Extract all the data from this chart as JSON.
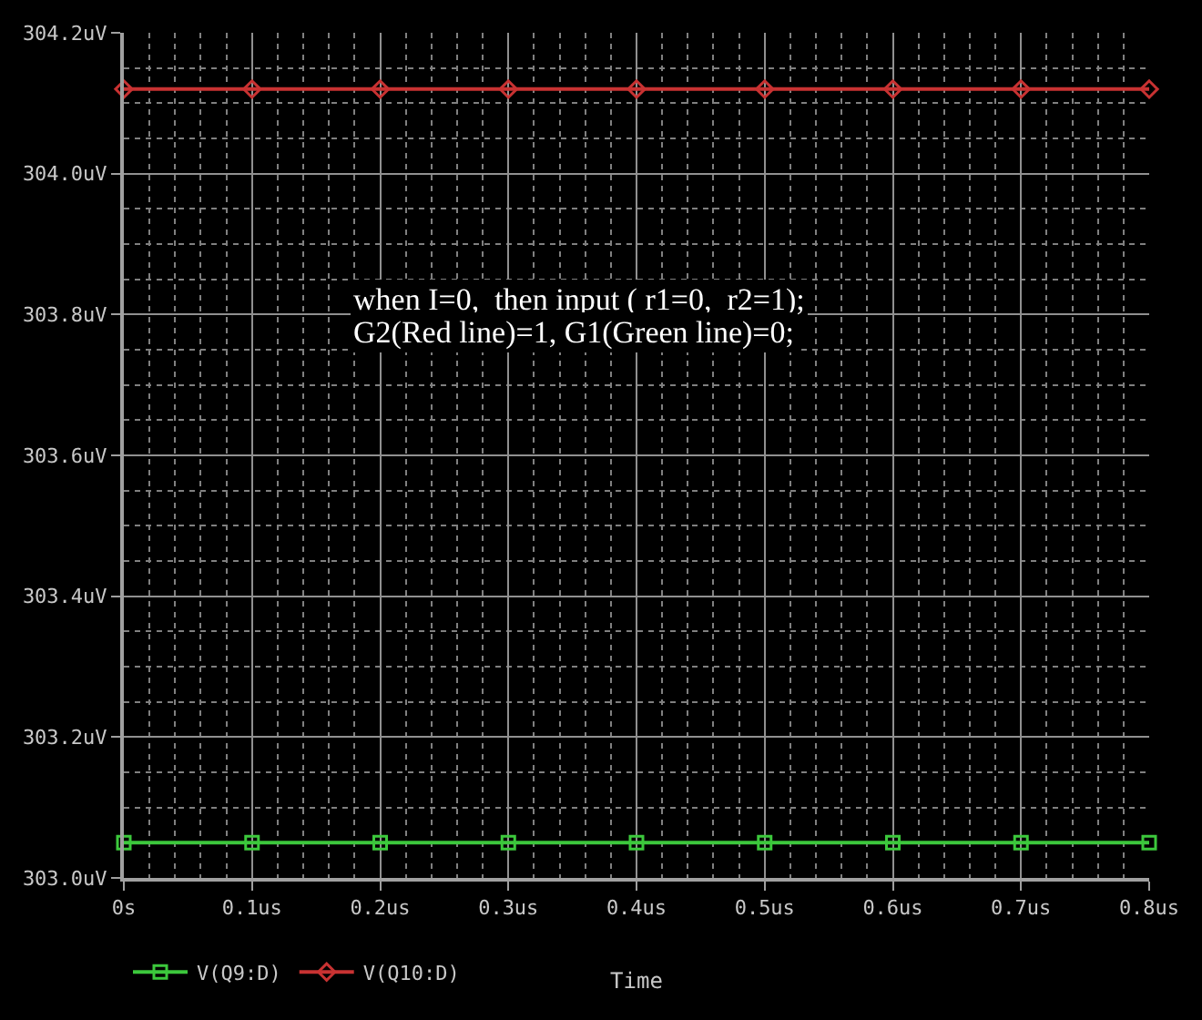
{
  "chart_data": {
    "type": "line",
    "xlabel": "Time",
    "x": [
      0,
      0.1,
      0.2,
      0.3,
      0.4,
      0.5,
      0.6,
      0.7,
      0.8
    ],
    "series": [
      {
        "name": "V(Q9:D)",
        "color": "#3cc83c",
        "marker": "square",
        "values": [
          303.05,
          303.05,
          303.05,
          303.05,
          303.05,
          303.05,
          303.05,
          303.05,
          303.05
        ]
      },
      {
        "name": "V(Q10:D)",
        "color": "#c83232",
        "marker": "diamond",
        "values": [
          304.12,
          304.12,
          304.12,
          304.12,
          304.12,
          304.12,
          304.12,
          304.12,
          304.12
        ]
      }
    ],
    "xlim": [
      0,
      0.8
    ],
    "xticks": [
      {
        "value": 0,
        "label": "0s"
      },
      {
        "value": 0.1,
        "label": "0.1us"
      },
      {
        "value": 0.2,
        "label": "0.2us"
      },
      {
        "value": 0.3,
        "label": "0.3us"
      },
      {
        "value": 0.4,
        "label": "0.4us"
      },
      {
        "value": 0.5,
        "label": "0.5us"
      },
      {
        "value": 0.6,
        "label": "0.6us"
      },
      {
        "value": 0.7,
        "label": "0.7us"
      },
      {
        "value": 0.8,
        "label": "0.8us"
      }
    ],
    "ylim": [
      303.0,
      304.2
    ],
    "yticks": [
      {
        "value": 303.0,
        "label": "303.0uV"
      },
      {
        "value": 303.2,
        "label": "303.2uV"
      },
      {
        "value": 303.4,
        "label": "303.4uV"
      },
      {
        "value": 303.6,
        "label": "303.6uV"
      },
      {
        "value": 303.8,
        "label": "303.8uV"
      },
      {
        "value": 304.0,
        "label": "304.0uV"
      },
      {
        "value": 304.2,
        "label": "304.2uV"
      }
    ],
    "annotations": [
      "when I=0,  then input ( r1=0,  r2=1);",
      "G2(Red line)=1, G1(Green line)=0;"
    ],
    "grid": true,
    "legend": "bottom left",
    "line_style": "solid"
  }
}
